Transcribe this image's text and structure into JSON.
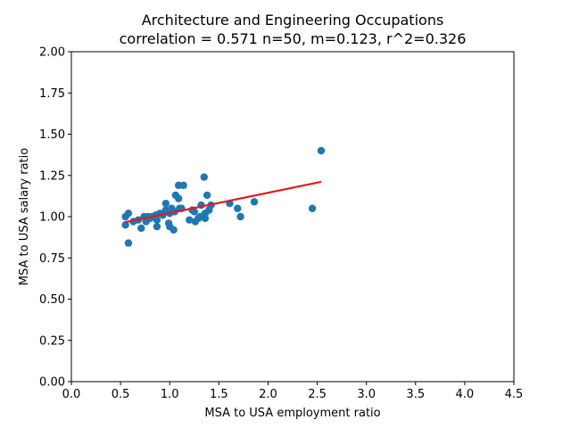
{
  "chart_data": {
    "type": "scatter",
    "title": "Architecture and Engineering Occupations",
    "subtitle": "correlation = 0.571 n=50, m=0.123, r^2=0.326",
    "xlabel": "MSA to USA employment ratio",
    "ylabel": "MSA to USA salary ratio",
    "xlim": [
      0.0,
      4.5
    ],
    "ylim": [
      0.0,
      2.0
    ],
    "xticks": [
      "0.0",
      "0.5",
      "1.0",
      "1.5",
      "2.0",
      "2.5",
      "3.0",
      "3.5",
      "4.0",
      "4.5"
    ],
    "yticks": [
      "0.00",
      "0.25",
      "0.50",
      "0.75",
      "1.00",
      "1.25",
      "1.50",
      "1.75",
      "2.00"
    ],
    "grid": false,
    "point_color": "#1f77b4",
    "line_color": "#e31a1c",
    "points": [
      {
        "x": 0.55,
        "y": 1.0
      },
      {
        "x": 0.55,
        "y": 0.95
      },
      {
        "x": 0.58,
        "y": 1.02
      },
      {
        "x": 0.58,
        "y": 0.84
      },
      {
        "x": 0.68,
        "y": 0.98
      },
      {
        "x": 0.71,
        "y": 0.93
      },
      {
        "x": 0.74,
        "y": 1.0
      },
      {
        "x": 0.76,
        "y": 0.97
      },
      {
        "x": 0.78,
        "y": 1.0
      },
      {
        "x": 0.8,
        "y": 0.99
      },
      {
        "x": 0.86,
        "y": 1.01
      },
      {
        "x": 0.87,
        "y": 0.94
      },
      {
        "x": 0.87,
        "y": 0.98
      },
      {
        "x": 0.9,
        "y": 1.02
      },
      {
        "x": 0.93,
        "y": 1.01
      },
      {
        "x": 0.96,
        "y": 1.04
      },
      {
        "x": 0.96,
        "y": 1.08
      },
      {
        "x": 0.99,
        "y": 0.96
      },
      {
        "x": 1.0,
        "y": 0.94
      },
      {
        "x": 1.02,
        "y": 1.05
      },
      {
        "x": 1.04,
        "y": 0.92
      },
      {
        "x": 1.05,
        "y": 1.03
      },
      {
        "x": 1.06,
        "y": 1.13
      },
      {
        "x": 1.09,
        "y": 1.19
      },
      {
        "x": 1.09,
        "y": 1.11
      },
      {
        "x": 1.1,
        "y": 1.05
      },
      {
        "x": 1.14,
        "y": 1.19
      },
      {
        "x": 1.2,
        "y": 0.98
      },
      {
        "x": 1.23,
        "y": 1.04
      },
      {
        "x": 1.26,
        "y": 0.97
      },
      {
        "x": 1.29,
        "y": 0.99
      },
      {
        "x": 1.31,
        "y": 1.0
      },
      {
        "x": 1.32,
        "y": 1.07
      },
      {
        "x": 1.35,
        "y": 1.24
      },
      {
        "x": 1.36,
        "y": 1.02
      },
      {
        "x": 1.36,
        "y": 0.99
      },
      {
        "x": 1.38,
        "y": 1.13
      },
      {
        "x": 1.4,
        "y": 1.04
      },
      {
        "x": 1.42,
        "y": 1.07
      },
      {
        "x": 1.61,
        "y": 1.08
      },
      {
        "x": 1.69,
        "y": 1.05
      },
      {
        "x": 1.72,
        "y": 1.0
      },
      {
        "x": 1.86,
        "y": 1.09
      },
      {
        "x": 2.45,
        "y": 1.05
      },
      {
        "x": 2.54,
        "y": 1.4
      },
      {
        "x": 0.63,
        "y": 0.97
      },
      {
        "x": 0.82,
        "y": 1.0
      },
      {
        "x": 1.0,
        "y": 1.02
      },
      {
        "x": 1.12,
        "y": 1.05
      },
      {
        "x": 1.25,
        "y": 1.03
      }
    ],
    "fit_line": {
      "x": [
        0.55,
        2.54
      ],
      "y": [
        0.967,
        1.211
      ]
    }
  }
}
